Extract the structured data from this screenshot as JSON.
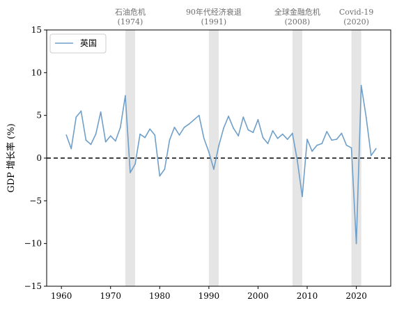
{
  "chart_data": {
    "type": "line",
    "xlabel": "",
    "ylabel": "GDP 增长率 (%)",
    "xlim": [
      1957,
      2027
    ],
    "ylim": [
      -15,
      15
    ],
    "xticks": [
      1960,
      1970,
      1980,
      1990,
      2000,
      2010,
      2020
    ],
    "yticks": [
      -15,
      -10,
      -5,
      0,
      5,
      10,
      15
    ],
    "grid": false,
    "legend": "top-left",
    "reference_line": {
      "y": 0,
      "style": "dashed",
      "color": "#000000"
    },
    "shaded_periods": [
      {
        "label": "石油危机",
        "sublabel": "(1974)",
        "x0": 1973,
        "x1": 1975
      },
      {
        "label": "90年代经济衰退",
        "sublabel": "(1991)",
        "x0": 1990,
        "x1": 1992
      },
      {
        "label": "全球金融危机",
        "sublabel": "(2008)",
        "x0": 2007,
        "x1": 2009
      },
      {
        "label": "Covid-19",
        "sublabel": "(2020)",
        "x0": 2019,
        "x1": 2021
      }
    ],
    "series": [
      {
        "name": "英国",
        "color": "#6f9fc8",
        "x": [
          1961,
          1962,
          1963,
          1964,
          1965,
          1966,
          1967,
          1968,
          1969,
          1970,
          1971,
          1972,
          1973,
          1974,
          1975,
          1976,
          1977,
          1978,
          1979,
          1980,
          1981,
          1982,
          1983,
          1984,
          1985,
          1986,
          1987,
          1988,
          1989,
          1990,
          1991,
          1992,
          1993,
          1994,
          1995,
          1996,
          1997,
          1998,
          1999,
          2000,
          2001,
          2002,
          2003,
          2004,
          2005,
          2006,
          2007,
          2008,
          2009,
          2010,
          2011,
          2012,
          2013,
          2014,
          2015,
          2016,
          2017,
          2018,
          2019,
          2020,
          2021,
          2022,
          2023,
          2024
        ],
        "y": [
          2.7,
          1.1,
          4.8,
          5.5,
          2.1,
          1.6,
          2.8,
          5.4,
          1.9,
          2.6,
          2.0,
          3.6,
          7.3,
          -1.7,
          -0.7,
          2.8,
          2.4,
          3.4,
          2.7,
          -2.1,
          -1.3,
          2.1,
          3.6,
          2.7,
          3.6,
          4.0,
          4.5,
          5.0,
          2.3,
          0.7,
          -1.3,
          1.4,
          3.5,
          4.9,
          3.5,
          2.6,
          4.8,
          3.3,
          3.0,
          4.5,
          2.4,
          1.7,
          3.2,
          2.3,
          2.8,
          2.2,
          2.9,
          -0.3,
          -4.5,
          2.2,
          0.8,
          1.5,
          1.7,
          3.1,
          2.1,
          2.2,
          2.9,
          1.5,
          1.2,
          -10.0,
          8.5,
          4.8,
          0.3,
          1.1
        ]
      }
    ]
  }
}
